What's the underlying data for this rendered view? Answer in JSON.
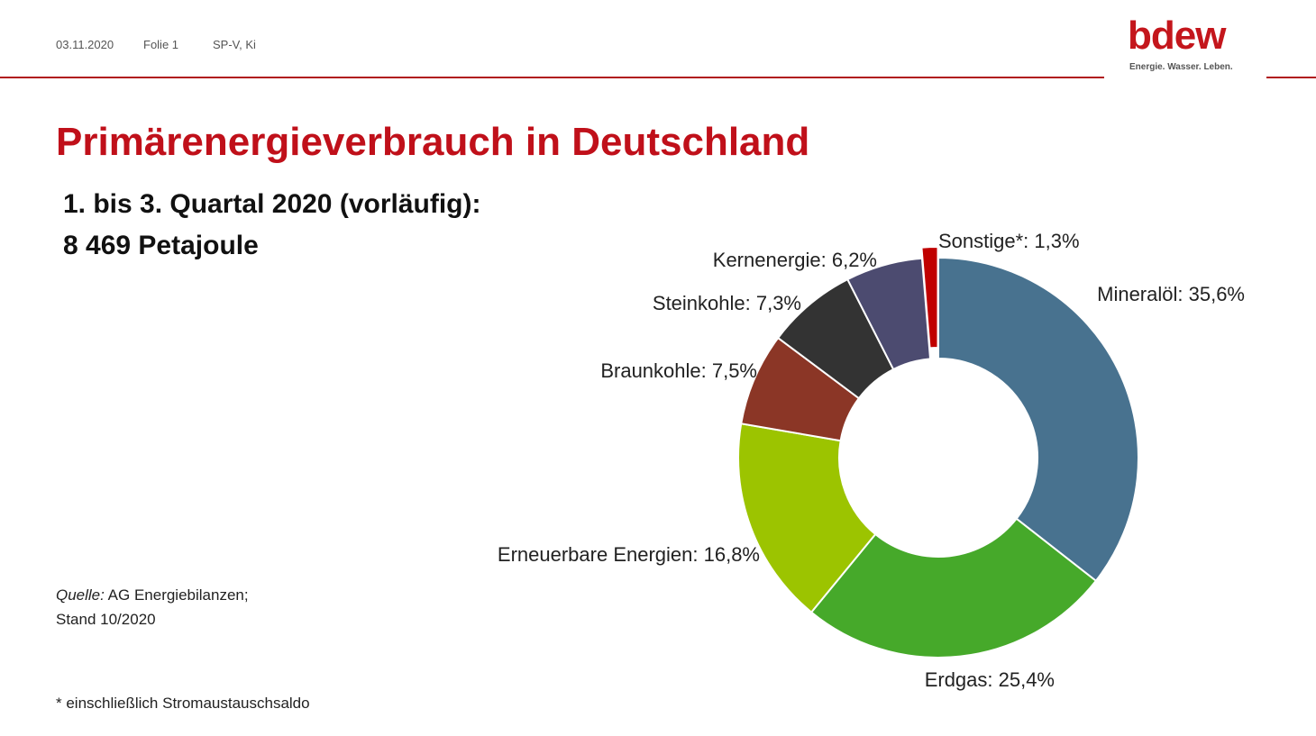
{
  "header": {
    "date": "03.11.2020",
    "slide": "Folie 1",
    "author": "SP-V, Ki"
  },
  "logo": {
    "wordmark": "bdew",
    "tagline": "Energie. Wasser. Leben."
  },
  "title": "Primärenergieverbrauch in Deutschland",
  "subtitle_line1": "1. bis 3. Quartal 2020 (vorläufig):",
  "subtitle_line2": "8 469 Petajoule",
  "source": {
    "prefix": "Quelle:",
    "text": " AG Energiebilanzen;",
    "line2": "Stand 10/2020"
  },
  "footnote": "* einschließlich Stromaustauschsaldo",
  "colors": {
    "accent": "#c0101a",
    "rule": "#b0161c"
  },
  "chart_data": {
    "type": "pie",
    "variant": "donut",
    "title": "",
    "slices": [
      {
        "name": "Mineralöl",
        "value": 35.6,
        "label": "Mineralöl: 35,6%",
        "color": "#48728f"
      },
      {
        "name": "Erdgas",
        "value": 25.4,
        "label": "Erdgas: 25,4%",
        "color": "#46a92a"
      },
      {
        "name": "Erneuerbare Energien",
        "value": 16.8,
        "label": "Erneuerbare Energien: 16,8%",
        "color": "#9cc400"
      },
      {
        "name": "Braunkohle",
        "value": 7.5,
        "label": "Braunkohle: 7,5%",
        "color": "#8b3626"
      },
      {
        "name": "Steinkohle",
        "value": 7.3,
        "label": "Steinkohle: 7,3%",
        "color": "#333333"
      },
      {
        "name": "Kernenergie",
        "value": 6.2,
        "label": "Kernenergie: 6,2%",
        "color": "#4c4b70"
      },
      {
        "name": "Sonstige*",
        "value": 1.3,
        "label": "Sonstige*: 1,3%",
        "color": "#c00000",
        "exploded": true
      }
    ],
    "start_angle_deg": 0,
    "direction": "clockwise",
    "legend": "none",
    "data_labels": "outside"
  }
}
